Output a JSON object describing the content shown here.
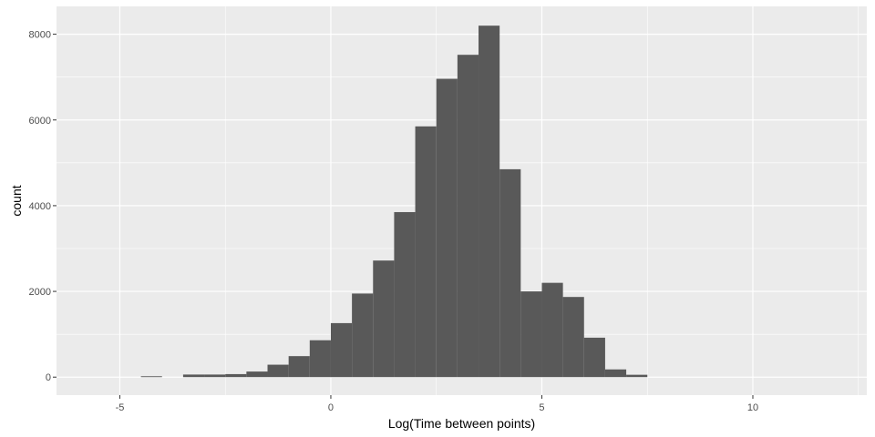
{
  "chart_data": {
    "type": "bar",
    "title": "",
    "xlabel": "Log(Time between points)",
    "ylabel": "count",
    "xlim": [
      -6.5,
      12.7
    ],
    "ylim": [
      -420,
      8650
    ],
    "x_ticks": [
      -5,
      0,
      5,
      10
    ],
    "x_tick_labels": [
      "-5",
      "0",
      "5",
      "10"
    ],
    "y_ticks": [
      0,
      2000,
      4000,
      6000,
      8000
    ],
    "y_tick_labels": [
      "0",
      "2000",
      "4000",
      "6000",
      "8000"
    ],
    "grid": true,
    "legend": "none",
    "bin_width": 0.5,
    "bins": [
      {
        "x_start": -4.5,
        "count": 20
      },
      {
        "x_start": -3.5,
        "count": 60
      },
      {
        "x_start": -3.0,
        "count": 60
      },
      {
        "x_start": -2.5,
        "count": 70
      },
      {
        "x_start": -2.0,
        "count": 130
      },
      {
        "x_start": -1.5,
        "count": 290
      },
      {
        "x_start": -1.0,
        "count": 490
      },
      {
        "x_start": -0.5,
        "count": 860
      },
      {
        "x_start": 0.0,
        "count": 1260
      },
      {
        "x_start": 0.5,
        "count": 1950
      },
      {
        "x_start": 1.0,
        "count": 2720
      },
      {
        "x_start": 1.5,
        "count": 3850
      },
      {
        "x_start": 2.0,
        "count": 5850
      },
      {
        "x_start": 2.5,
        "count": 6960
      },
      {
        "x_start": 3.0,
        "count": 7520
      },
      {
        "x_start": 3.5,
        "count": 8200
      },
      {
        "x_start": 4.0,
        "count": 4850
      },
      {
        "x_start": 4.5,
        "count": 2000
      },
      {
        "x_start": 5.0,
        "count": 2200
      },
      {
        "x_start": 5.5,
        "count": 1870
      },
      {
        "x_start": 6.0,
        "count": 920
      },
      {
        "x_start": 6.5,
        "count": 180
      },
      {
        "x_start": 7.0,
        "count": 55
      }
    ],
    "colors": {
      "panel_background": "#ebebeb",
      "grid": "#ffffff",
      "bar_fill": "#595959",
      "tick": "#333333",
      "tick_label": "#4d4d4d",
      "axis_title": "#000000"
    }
  }
}
